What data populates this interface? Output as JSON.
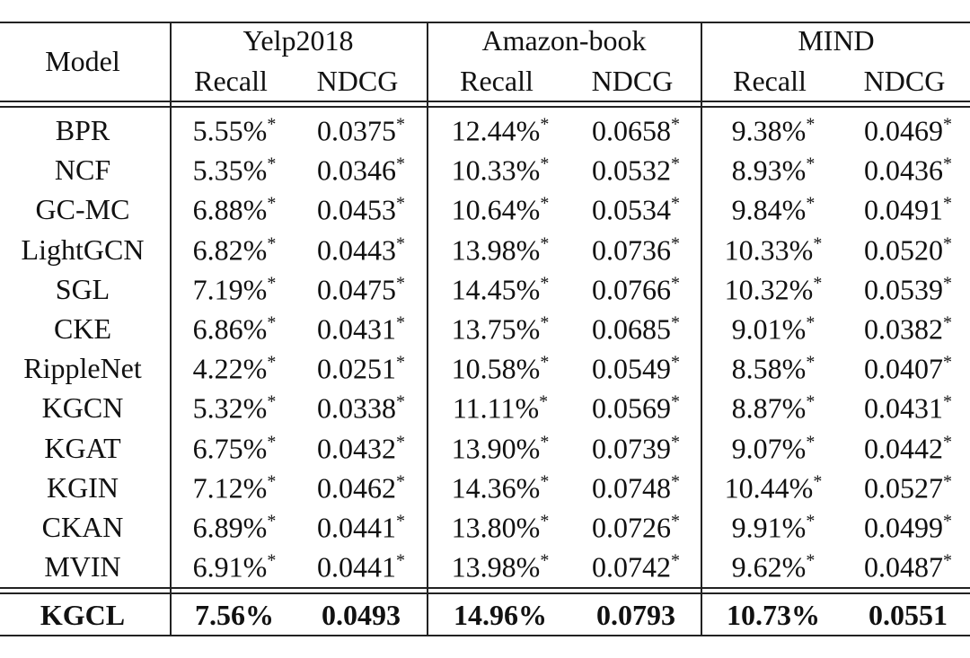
{
  "table": {
    "model_header": "Model",
    "groups": [
      "Yelp2018",
      "Amazon-book",
      "MIND"
    ],
    "subheaders": [
      "Recall",
      "NDCG",
      "Recall",
      "NDCG",
      "Recall",
      "NDCG"
    ],
    "rows": [
      {
        "model": "BPR",
        "cells": [
          {
            "text": "5.55%",
            "sup": "*"
          },
          {
            "text": "0.0375",
            "sup": "*"
          },
          {
            "text": "12.44%",
            "sup": "*"
          },
          {
            "text": "0.0658",
            "sup": "*"
          },
          {
            "text": "9.38%",
            "sup": "*"
          },
          {
            "text": "0.0469",
            "sup": "*"
          }
        ]
      },
      {
        "model": "NCF",
        "cells": [
          {
            "text": "5.35%",
            "sup": "*"
          },
          {
            "text": "0.0346",
            "sup": "*"
          },
          {
            "text": "10.33%",
            "sup": "*"
          },
          {
            "text": "0.0532",
            "sup": "*"
          },
          {
            "text": "8.93%",
            "sup": "*"
          },
          {
            "text": "0.0436",
            "sup": "*"
          }
        ]
      },
      {
        "model": "GC-MC",
        "cells": [
          {
            "text": "6.88%",
            "sup": "*"
          },
          {
            "text": "0.0453",
            "sup": "*"
          },
          {
            "text": "10.64%",
            "sup": "*"
          },
          {
            "text": "0.0534",
            "sup": "*"
          },
          {
            "text": "9.84%",
            "sup": "*"
          },
          {
            "text": "0.0491",
            "sup": "*"
          }
        ]
      },
      {
        "model": "LightGCN",
        "cells": [
          {
            "text": "6.82%",
            "sup": "*"
          },
          {
            "text": "0.0443",
            "sup": "*"
          },
          {
            "text": "13.98%",
            "sup": "*"
          },
          {
            "text": "0.0736",
            "sup": "*"
          },
          {
            "text": "10.33%",
            "sup": "*"
          },
          {
            "text": "0.0520",
            "sup": "*"
          }
        ]
      },
      {
        "model": "SGL",
        "cells": [
          {
            "text": "7.19%",
            "sup": "*"
          },
          {
            "text": "0.0475",
            "sup": "*"
          },
          {
            "text": "14.45%",
            "sup": "*"
          },
          {
            "text": "0.0766",
            "sup": "*"
          },
          {
            "text": "10.32%",
            "sup": "*"
          },
          {
            "text": "0.0539",
            "sup": "*"
          }
        ]
      },
      {
        "model": "CKE",
        "cells": [
          {
            "text": "6.86%",
            "sup": "*"
          },
          {
            "text": "0.0431",
            "sup": "*"
          },
          {
            "text": "13.75%",
            "sup": "*"
          },
          {
            "text": "0.0685",
            "sup": "*"
          },
          {
            "text": "9.01%",
            "sup": "*"
          },
          {
            "text": "0.0382",
            "sup": "*"
          }
        ]
      },
      {
        "model": "RippleNet",
        "cells": [
          {
            "text": "4.22%",
            "sup": "*"
          },
          {
            "text": "0.0251",
            "sup": "*"
          },
          {
            "text": "10.58%",
            "sup": "*"
          },
          {
            "text": "0.0549",
            "sup": "*"
          },
          {
            "text": "8.58%",
            "sup": "*"
          },
          {
            "text": "0.0407",
            "sup": "*"
          }
        ]
      },
      {
        "model": "KGCN",
        "cells": [
          {
            "text": "5.32%",
            "sup": "*"
          },
          {
            "text": "0.0338",
            "sup": "*"
          },
          {
            "text": "11.11%",
            "sup": "*"
          },
          {
            "text": "0.0569",
            "sup": "*"
          },
          {
            "text": "8.87%",
            "sup": "*"
          },
          {
            "text": "0.0431",
            "sup": "*"
          }
        ]
      },
      {
        "model": "KGAT",
        "cells": [
          {
            "text": "6.75%",
            "sup": "*"
          },
          {
            "text": "0.0432",
            "sup": "*"
          },
          {
            "text": "13.90%",
            "sup": "*"
          },
          {
            "text": "0.0739",
            "sup": "*"
          },
          {
            "text": "9.07%",
            "sup": "*"
          },
          {
            "text": "0.0442",
            "sup": "*"
          }
        ]
      },
      {
        "model": "KGIN",
        "cells": [
          {
            "text": "7.12%",
            "sup": "*"
          },
          {
            "text": "0.0462",
            "sup": "*"
          },
          {
            "text": "14.36%",
            "sup": "*"
          },
          {
            "text": "0.0748",
            "sup": "*"
          },
          {
            "text": "10.44%",
            "sup": "*"
          },
          {
            "text": "0.0527",
            "sup": "*"
          }
        ]
      },
      {
        "model": "CKAN",
        "cells": [
          {
            "text": "6.89%",
            "sup": "*"
          },
          {
            "text": "0.0441",
            "sup": "*"
          },
          {
            "text": "13.80%",
            "sup": "*"
          },
          {
            "text": "0.0726",
            "sup": "*"
          },
          {
            "text": "9.91%",
            "sup": "*"
          },
          {
            "text": "0.0499",
            "sup": "*"
          }
        ]
      },
      {
        "model": "MVIN",
        "cells": [
          {
            "text": "6.91%",
            "sup": "*"
          },
          {
            "text": "0.0441",
            "sup": "*"
          },
          {
            "text": "13.98%",
            "sup": "*"
          },
          {
            "text": "0.0742",
            "sup": "*"
          },
          {
            "text": "9.62%",
            "sup": "*"
          },
          {
            "text": "0.0487",
            "sup": "*"
          }
        ]
      }
    ],
    "final_row": {
      "model": "KGCL",
      "cells": [
        {
          "text": "7.56%"
        },
        {
          "text": "0.0493"
        },
        {
          "text": "14.96%"
        },
        {
          "text": "0.0793"
        },
        {
          "text": "10.73%"
        },
        {
          "text": "0.0551"
        }
      ]
    }
  }
}
